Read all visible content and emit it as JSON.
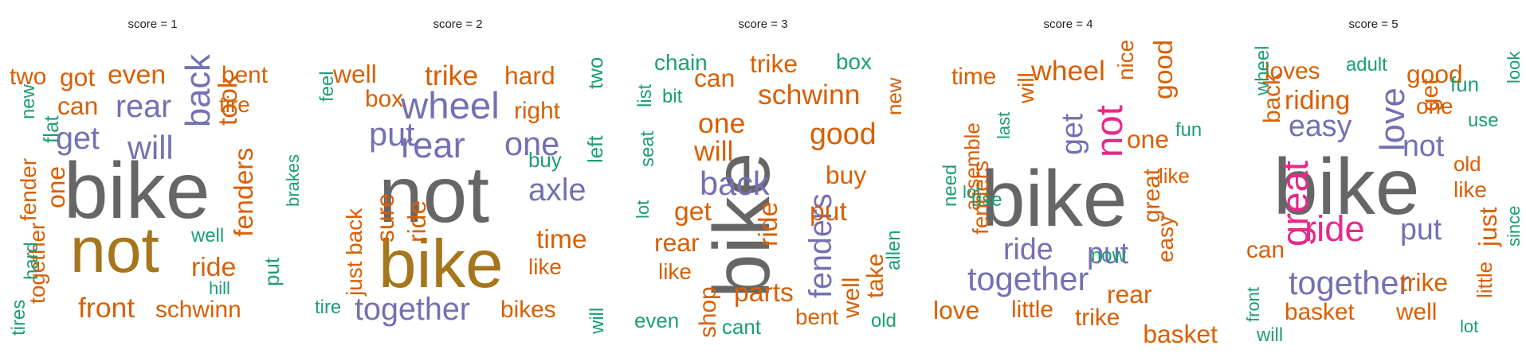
{
  "chart_data": {
    "type": "wordcloud",
    "colors": {
      "dark_gray": "#666666",
      "olive": "#a6761d",
      "purple": "#7570b3",
      "orange": "#d95f02",
      "green": "#1b9e77",
      "pink": "#e7298a"
    },
    "panels": [
      {
        "title": "score = 1",
        "words": [
          {
            "text": "bike",
            "weight": 100,
            "color": "#666666",
            "rot": 0
          },
          {
            "text": "not",
            "weight": 80,
            "color": "#a6761d",
            "rot": 0
          },
          {
            "text": "back",
            "weight": 42,
            "color": "#7570b3",
            "rot": -90
          },
          {
            "text": "will",
            "weight": 40,
            "color": "#7570b3",
            "rot": 0
          },
          {
            "text": "rear",
            "weight": 38,
            "color": "#7570b3",
            "rot": 0
          },
          {
            "text": "get",
            "weight": 38,
            "color": "#7570b3",
            "rot": 0
          },
          {
            "text": "even",
            "weight": 32,
            "color": "#d95f02",
            "rot": 0
          },
          {
            "text": "got",
            "weight": 30,
            "color": "#d95f02",
            "rot": 0
          },
          {
            "text": "two",
            "weight": 28,
            "color": "#d95f02",
            "rot": 0
          },
          {
            "text": "can",
            "weight": 30,
            "color": "#d95f02",
            "rot": 0
          },
          {
            "text": "bent",
            "weight": 28,
            "color": "#d95f02",
            "rot": 0
          },
          {
            "text": "took",
            "weight": 32,
            "color": "#d95f02",
            "rot": -90
          },
          {
            "text": "tire",
            "weight": 26,
            "color": "#d95f02",
            "rot": 0
          },
          {
            "text": "fenders",
            "weight": 32,
            "color": "#d95f02",
            "rot": -90
          },
          {
            "text": "ride",
            "weight": 32,
            "color": "#d95f02",
            "rot": 0
          },
          {
            "text": "front",
            "weight": 34,
            "color": "#d95f02",
            "rot": 0
          },
          {
            "text": "schwinn",
            "weight": 28,
            "color": "#d95f02",
            "rot": 0
          },
          {
            "text": "one",
            "weight": 30,
            "color": "#d95f02",
            "rot": -90
          },
          {
            "text": "together",
            "weight": 26,
            "color": "#d95f02",
            "rot": -90
          },
          {
            "text": "fender",
            "weight": 26,
            "color": "#d95f02",
            "rot": -90
          },
          {
            "text": "flat",
            "weight": 24,
            "color": "#1b9e77",
            "rot": -90
          },
          {
            "text": "new",
            "weight": 22,
            "color": "#1b9e77",
            "rot": -90
          },
          {
            "text": "hard",
            "weight": 22,
            "color": "#1b9e77",
            "rot": -90
          },
          {
            "text": "tires",
            "weight": 22,
            "color": "#1b9e77",
            "rot": -90
          },
          {
            "text": "well",
            "weight": 22,
            "color": "#1b9e77",
            "rot": 0
          },
          {
            "text": "hill",
            "weight": 20,
            "color": "#1b9e77",
            "rot": 0
          },
          {
            "text": "put",
            "weight": 24,
            "color": "#1b9e77",
            "rot": -90
          },
          {
            "text": "brakes",
            "weight": 20,
            "color": "#1b9e77",
            "rot": -90
          }
        ]
      },
      {
        "title": "score = 2",
        "words": [
          {
            "text": "not",
            "weight": 100,
            "color": "#666666",
            "rot": 0
          },
          {
            "text": "bike",
            "weight": 85,
            "color": "#a6761d",
            "rot": 0
          },
          {
            "text": "wheel",
            "weight": 46,
            "color": "#7570b3",
            "rot": 0
          },
          {
            "text": "rear",
            "weight": 44,
            "color": "#7570b3",
            "rot": 0
          },
          {
            "text": "one",
            "weight": 40,
            "color": "#7570b3",
            "rot": 0
          },
          {
            "text": "put",
            "weight": 40,
            "color": "#7570b3",
            "rot": 0
          },
          {
            "text": "axle",
            "weight": 38,
            "color": "#7570b3",
            "rot": 0
          },
          {
            "text": "together",
            "weight": 38,
            "color": "#7570b3",
            "rot": 0
          },
          {
            "text": "trike",
            "weight": 34,
            "color": "#d95f02",
            "rot": 0
          },
          {
            "text": "hard",
            "weight": 30,
            "color": "#d95f02",
            "rot": 0
          },
          {
            "text": "well",
            "weight": 30,
            "color": "#d95f02",
            "rot": 0
          },
          {
            "text": "box",
            "weight": 28,
            "color": "#d95f02",
            "rot": 0
          },
          {
            "text": "right",
            "weight": 28,
            "color": "#d95f02",
            "rot": 0
          },
          {
            "text": "sure",
            "weight": 30,
            "color": "#d95f02",
            "rot": -90
          },
          {
            "text": "ride",
            "weight": 30,
            "color": "#d95f02",
            "rot": -90
          },
          {
            "text": "just back",
            "weight": 26,
            "color": "#d95f02",
            "rot": -90
          },
          {
            "text": "time",
            "weight": 32,
            "color": "#d95f02",
            "rot": 0
          },
          {
            "text": "like",
            "weight": 26,
            "color": "#d95f02",
            "rot": 0
          },
          {
            "text": "bikes",
            "weight": 28,
            "color": "#d95f02",
            "rot": 0
          },
          {
            "text": "feel",
            "weight": 22,
            "color": "#1b9e77",
            "rot": -90
          },
          {
            "text": "two",
            "weight": 24,
            "color": "#1b9e77",
            "rot": -90
          },
          {
            "text": "left",
            "weight": 24,
            "color": "#1b9e77",
            "rot": -90
          },
          {
            "text": "buy",
            "weight": 24,
            "color": "#1b9e77",
            "rot": 0
          },
          {
            "text": "tire",
            "weight": 22,
            "color": "#1b9e77",
            "rot": 0
          },
          {
            "text": "will",
            "weight": 22,
            "color": "#1b9e77",
            "rot": -90
          }
        ]
      },
      {
        "title": "score = 3",
        "words": [
          {
            "text": "bike",
            "weight": 100,
            "color": "#666666",
            "rot": -90
          },
          {
            "text": "back",
            "weight": 40,
            "color": "#7570b3",
            "rot": 0
          },
          {
            "text": "fenders",
            "weight": 38,
            "color": "#7570b3",
            "rot": -90
          },
          {
            "text": "schwinn",
            "weight": 34,
            "color": "#d95f02",
            "rot": 0
          },
          {
            "text": "good",
            "weight": 36,
            "color": "#d95f02",
            "rot": 0
          },
          {
            "text": "trike",
            "weight": 30,
            "color": "#d95f02",
            "rot": 0
          },
          {
            "text": "one",
            "weight": 34,
            "color": "#d95f02",
            "rot": 0
          },
          {
            "text": "can",
            "weight": 30,
            "color": "#d95f02",
            "rot": 0
          },
          {
            "text": "will",
            "weight": 34,
            "color": "#d95f02",
            "rot": 0
          },
          {
            "text": "get",
            "weight": 32,
            "color": "#d95f02",
            "rot": 0
          },
          {
            "text": "ride",
            "weight": 32,
            "color": "#d95f02",
            "rot": -90
          },
          {
            "text": "rear",
            "weight": 30,
            "color": "#d95f02",
            "rot": 0
          },
          {
            "text": "buy",
            "weight": 30,
            "color": "#d95f02",
            "rot": 0
          },
          {
            "text": "put",
            "weight": 32,
            "color": "#d95f02",
            "rot": 0
          },
          {
            "text": "like",
            "weight": 26,
            "color": "#d95f02",
            "rot": 0
          },
          {
            "text": "shop",
            "weight": 28,
            "color": "#d95f02",
            "rot": -90
          },
          {
            "text": "parts",
            "weight": 32,
            "color": "#d95f02",
            "rot": 0
          },
          {
            "text": "well",
            "weight": 28,
            "color": "#d95f02",
            "rot": -90
          },
          {
            "text": "take",
            "weight": 28,
            "color": "#d95f02",
            "rot": -90
          },
          {
            "text": "bent",
            "weight": 26,
            "color": "#d95f02",
            "rot": 0
          },
          {
            "text": "new",
            "weight": 24,
            "color": "#d95f02",
            "rot": -90
          },
          {
            "text": "box",
            "weight": 26,
            "color": "#1b9e77",
            "rot": 0
          },
          {
            "text": "chain",
            "weight": 26,
            "color": "#1b9e77",
            "rot": 0
          },
          {
            "text": "bit",
            "weight": 22,
            "color": "#1b9e77",
            "rot": 0
          },
          {
            "text": "list",
            "weight": 22,
            "color": "#1b9e77",
            "rot": -90
          },
          {
            "text": "seat",
            "weight": 22,
            "color": "#1b9e77",
            "rot": -90
          },
          {
            "text": "lot",
            "weight": 20,
            "color": "#1b9e77",
            "rot": -90
          },
          {
            "text": "even",
            "weight": 24,
            "color": "#1b9e77",
            "rot": 0
          },
          {
            "text": "cant",
            "weight": 24,
            "color": "#1b9e77",
            "rot": 0
          },
          {
            "text": "allen",
            "weight": 22,
            "color": "#1b9e77",
            "rot": -90
          },
          {
            "text": "old",
            "weight": 22,
            "color": "#1b9e77",
            "rot": 0
          }
        ]
      },
      {
        "title": "score = 4",
        "words": [
          {
            "text": "bike",
            "weight": 100,
            "color": "#666666",
            "rot": 0
          },
          {
            "text": "not",
            "weight": 46,
            "color": "#e7298a",
            "rot": -90
          },
          {
            "text": "get",
            "weight": 36,
            "color": "#7570b3",
            "rot": -90
          },
          {
            "text": "together",
            "weight": 40,
            "color": "#7570b3",
            "rot": 0
          },
          {
            "text": "ride",
            "weight": 36,
            "color": "#7570b3",
            "rot": 0
          },
          {
            "text": "put",
            "weight": 36,
            "color": "#7570b3",
            "rot": 0
          },
          {
            "text": "wheel",
            "weight": 34,
            "color": "#d95f02",
            "rot": 0
          },
          {
            "text": "time",
            "weight": 28,
            "color": "#d95f02",
            "rot": 0
          },
          {
            "text": "will",
            "weight": 26,
            "color": "#d95f02",
            "rot": -90
          },
          {
            "text": "one",
            "weight": 30,
            "color": "#d95f02",
            "rot": 0
          },
          {
            "text": "good",
            "weight": 32,
            "color": "#d95f02",
            "rot": -90
          },
          {
            "text": "like",
            "weight": 24,
            "color": "#d95f02",
            "rot": 0
          },
          {
            "text": "great",
            "weight": 28,
            "color": "#d95f02",
            "rot": -90
          },
          {
            "text": "easy",
            "weight": 26,
            "color": "#d95f02",
            "rot": -90
          },
          {
            "text": "assemble",
            "weight": 24,
            "color": "#d95f02",
            "rot": -90
          },
          {
            "text": "fenders",
            "weight": 26,
            "color": "#d95f02",
            "rot": -90
          },
          {
            "text": "rear",
            "weight": 30,
            "color": "#d95f02",
            "rot": 0
          },
          {
            "text": "love",
            "weight": 30,
            "color": "#d95f02",
            "rot": 0
          },
          {
            "text": "little",
            "weight": 28,
            "color": "#d95f02",
            "rot": 0
          },
          {
            "text": "trike",
            "weight": 28,
            "color": "#d95f02",
            "rot": 0
          },
          {
            "text": "basket",
            "weight": 30,
            "color": "#d95f02",
            "rot": 0
          },
          {
            "text": "nice",
            "weight": 26,
            "color": "#d95f02",
            "rot": -90
          },
          {
            "text": "fun",
            "weight": 22,
            "color": "#1b9e77",
            "rot": 0
          },
          {
            "text": "last",
            "weight": 20,
            "color": "#1b9e77",
            "rot": -90
          },
          {
            "text": "use",
            "weight": 22,
            "color": "#1b9e77",
            "rot": 0
          },
          {
            "text": "need",
            "weight": 22,
            "color": "#1b9e77",
            "rot": -90
          },
          {
            "text": "now",
            "weight": 22,
            "color": "#1b9e77",
            "rot": 0
          },
          {
            "text": "lot",
            "weight": 20,
            "color": "#1b9e77",
            "rot": 0
          }
        ]
      },
      {
        "title": "score = 5",
        "words": [
          {
            "text": "bike",
            "weight": 100,
            "color": "#666666",
            "rot": 0
          },
          {
            "text": "great",
            "weight": 46,
            "color": "#e7298a",
            "rot": -90
          },
          {
            "text": "ride",
            "weight": 44,
            "color": "#e7298a",
            "rot": 0
          },
          {
            "text": "love",
            "weight": 42,
            "color": "#7570b3",
            "rot": -90
          },
          {
            "text": "easy",
            "weight": 36,
            "color": "#7570b3",
            "rot": 0
          },
          {
            "text": "not",
            "weight": 36,
            "color": "#7570b3",
            "rot": 0
          },
          {
            "text": "together",
            "weight": 40,
            "color": "#7570b3",
            "rot": 0
          },
          {
            "text": "put",
            "weight": 36,
            "color": "#7570b3",
            "rot": 0
          },
          {
            "text": "loves",
            "weight": 28,
            "color": "#d95f02",
            "rot": 0
          },
          {
            "text": "riding",
            "weight": 32,
            "color": "#d95f02",
            "rot": 0
          },
          {
            "text": "back",
            "weight": 28,
            "color": "#d95f02",
            "rot": -90
          },
          {
            "text": "good",
            "weight": 30,
            "color": "#d95f02",
            "rot": 0
          },
          {
            "text": "get",
            "weight": 28,
            "color": "#d95f02",
            "rot": -90
          },
          {
            "text": "one",
            "weight": 26,
            "color": "#d95f02",
            "rot": 0
          },
          {
            "text": "old",
            "weight": 24,
            "color": "#d95f02",
            "rot": 0
          },
          {
            "text": "like",
            "weight": 26,
            "color": "#d95f02",
            "rot": 0
          },
          {
            "text": "just",
            "weight": 30,
            "color": "#d95f02",
            "rot": -90
          },
          {
            "text": "can",
            "weight": 28,
            "color": "#d95f02",
            "rot": 0
          },
          {
            "text": "trike",
            "weight": 30,
            "color": "#d95f02",
            "rot": 0
          },
          {
            "text": "little",
            "weight": 24,
            "color": "#d95f02",
            "rot": -90
          },
          {
            "text": "basket",
            "weight": 28,
            "color": "#d95f02",
            "rot": 0
          },
          {
            "text": "well",
            "weight": 28,
            "color": "#d95f02",
            "rot": 0
          },
          {
            "text": "adult",
            "weight": 22,
            "color": "#1b9e77",
            "rot": 0
          },
          {
            "text": "fun",
            "weight": 24,
            "color": "#1b9e77",
            "rot": 0
          },
          {
            "text": "look",
            "weight": 20,
            "color": "#1b9e77",
            "rot": -90
          },
          {
            "text": "use",
            "weight": 22,
            "color": "#1b9e77",
            "rot": 0
          },
          {
            "text": "wheel",
            "weight": 22,
            "color": "#1b9e77",
            "rot": -90
          },
          {
            "text": "since",
            "weight": 20,
            "color": "#1b9e77",
            "rot": -90
          },
          {
            "text": "front",
            "weight": 20,
            "color": "#1b9e77",
            "rot": -90
          },
          {
            "text": "will",
            "weight": 22,
            "color": "#1b9e77",
            "rot": 0
          },
          {
            "text": "lot",
            "weight": 20,
            "color": "#1b9e77",
            "rot": 0
          }
        ]
      }
    ]
  }
}
